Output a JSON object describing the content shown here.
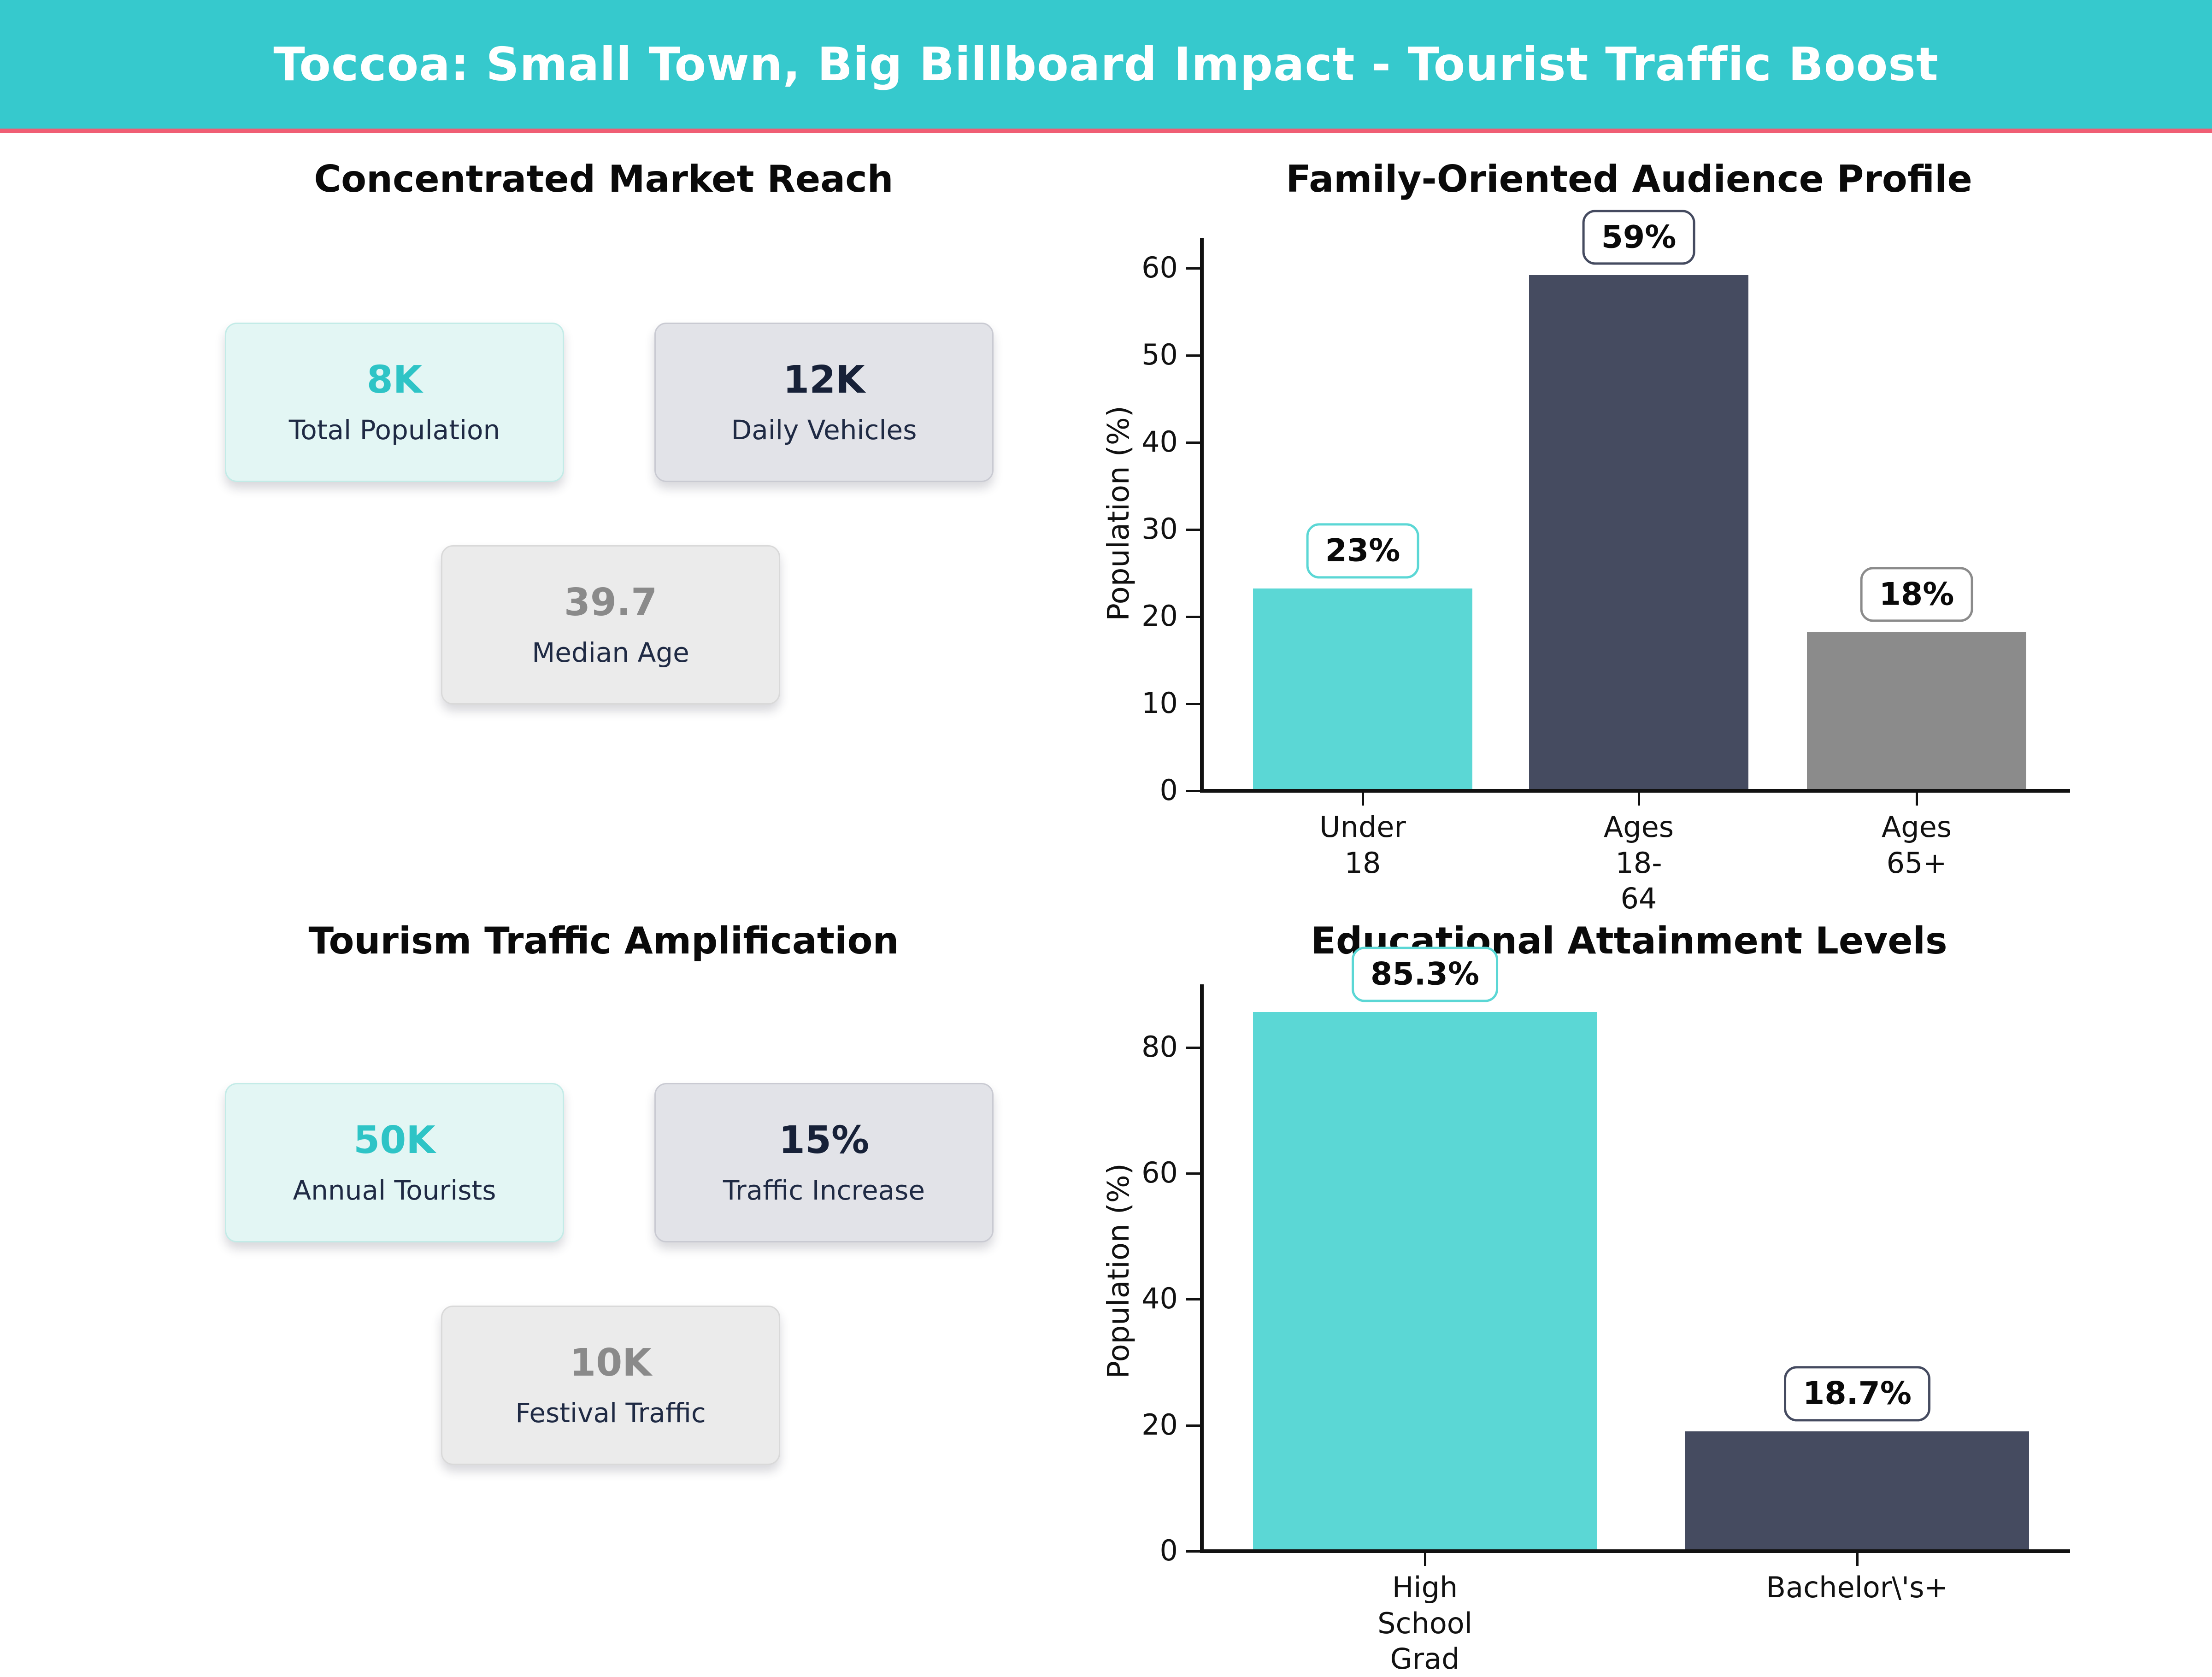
{
  "header": {
    "title": "Toccoa: Small Town, Big Billboard Impact - Tourist Traffic Boost"
  },
  "colors": {
    "header_bg": "#36C9CD",
    "divider_pink": "#F05E74",
    "teal": "#5BD7D5",
    "navy": "#454B60",
    "gray": "#8B8B8B",
    "value_teal": "#2EC4C6",
    "value_navy": "#172138",
    "value_gray": "#8A8A8A",
    "label_navy": "#1F2A44"
  },
  "panels": {
    "market": {
      "title": "Concentrated Market Reach",
      "cards": [
        {
          "value": "8K",
          "label": "Total Population"
        },
        {
          "value": "12K",
          "label": "Daily Vehicles"
        },
        {
          "value": "39.7",
          "label": "Median Age"
        }
      ]
    },
    "tourism": {
      "title": "Tourism Traffic Amplification",
      "cards": [
        {
          "value": "50K",
          "label": "Annual Tourists"
        },
        {
          "value": "15%",
          "label": "Traffic Increase"
        },
        {
          "value": "10K",
          "label": "Festival Traffic"
        }
      ]
    }
  },
  "chart_data": [
    {
      "type": "bar",
      "title": "Family-Oriented Audience Profile",
      "xlabel": "",
      "ylabel": "Population (%)",
      "ylim": [
        0,
        63
      ],
      "yticks": [
        0,
        10,
        20,
        30,
        40,
        50,
        60
      ],
      "categories": [
        "Under 18",
        "Ages 18-64",
        "Ages 65+"
      ],
      "values": [
        23,
        59,
        18
      ],
      "bar_labels": [
        "23%",
        "59%",
        "18%"
      ],
      "bar_colors": [
        "#5BD7D5",
        "#454B60",
        "#8B8B8B"
      ],
      "grid": false,
      "legend": "none"
    },
    {
      "type": "bar",
      "title": "Educational Attainment Levels",
      "xlabel": "",
      "ylabel": "Population (%)",
      "ylim": [
        0,
        90
      ],
      "yticks": [
        0,
        20,
        40,
        60,
        80
      ],
      "categories": [
        "High School\nGrad",
        "Bachelor\\'s+"
      ],
      "values": [
        85.3,
        18.7
      ],
      "bar_labels": [
        "85.3%",
        "18.7%"
      ],
      "bar_colors": [
        "#5BD7D5",
        "#454B60"
      ],
      "grid": false,
      "legend": "none"
    }
  ]
}
